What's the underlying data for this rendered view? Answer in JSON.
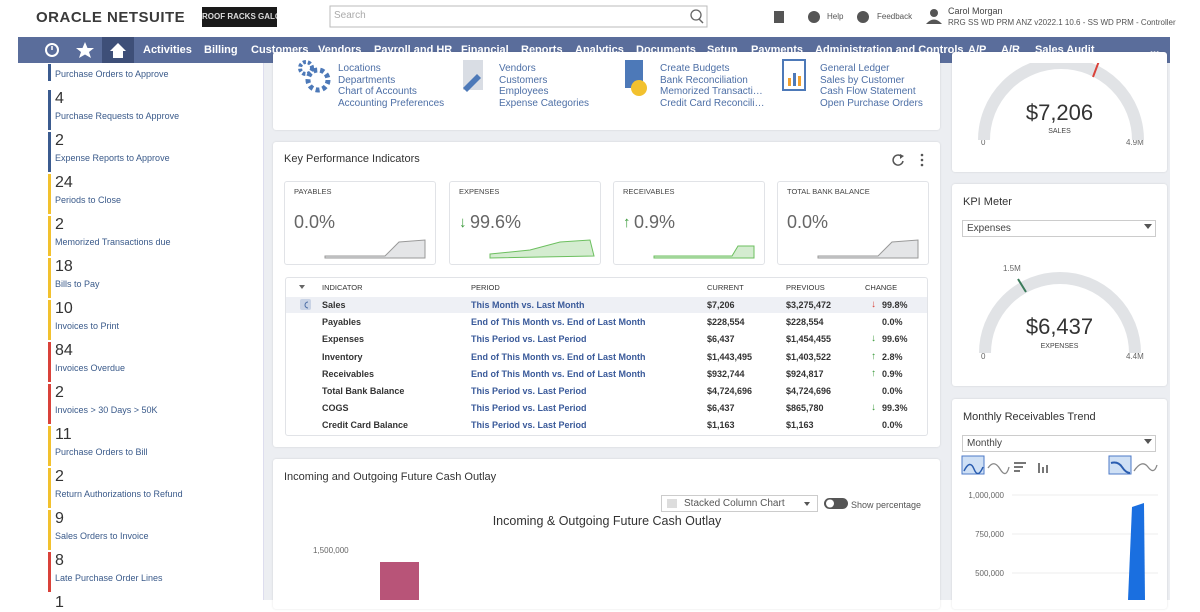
{
  "header": {
    "brand": "ORACLE NETSUITE",
    "company_logo": "ROOF RACKS GALORE",
    "search_placeholder": "Search",
    "help": "Help",
    "feedback": "Feedback",
    "user_name": "Carol Morgan",
    "user_role": "RRG SS WD PRM ANZ v2022.1 10.6 - SS WD PRM - Controller"
  },
  "nav": [
    "Activities",
    "Billing",
    "Customers",
    "Vendors",
    "Payroll and HR",
    "Financial",
    "Reports",
    "Analytics",
    "Documents",
    "Setup",
    "Payments",
    "Administration and Controls",
    "A/P",
    "A/R",
    "Sales Audit",
    "..."
  ],
  "reminders": [
    {
      "label": "Purchase Orders to Approve",
      "color": "#3b5b8f"
    },
    {
      "count": "4",
      "label": "Purchase Requests to Approve",
      "color": "#3b5b8f"
    },
    {
      "count": "2",
      "label": "Expense Reports to Approve",
      "color": "#3b5b8f"
    },
    {
      "count": "24",
      "label": "Periods to Close",
      "color": "#f2c12e"
    },
    {
      "count": "2",
      "label": "Memorized Transactions due",
      "color": "#f2c12e"
    },
    {
      "count": "18",
      "label": "Bills to Pay",
      "color": "#f2c12e"
    },
    {
      "count": "10",
      "label": "Invoices to Print",
      "color": "#f2c12e"
    },
    {
      "count": "84",
      "label": "Invoices Overdue",
      "color": "#d9423a"
    },
    {
      "count": "2",
      "label": "Invoices > 30 Days > 50K",
      "color": "#d9423a"
    },
    {
      "count": "11",
      "label": "Purchase Orders to Bill",
      "color": "#f2c12e"
    },
    {
      "count": "2",
      "label": "Return Authorizations to Refund",
      "color": "#f2c12e"
    },
    {
      "count": "9",
      "label": "Sales Orders to Invoice",
      "color": "#f2c12e"
    },
    {
      "count": "8",
      "label": "Late Purchase Order Lines",
      "color": "#d9423a"
    },
    {
      "count": "1"
    }
  ],
  "shortcuts": [
    [
      "Locations",
      "Departments",
      "Chart of Accounts",
      "Accounting Preferences"
    ],
    [
      "Vendors",
      "Customers",
      "Employees",
      "Expense Categories"
    ],
    [
      "Create Budgets",
      "Bank Reconciliation",
      "Memorized Transacti…",
      "Credit Card Reconcili…"
    ],
    [
      "General Ledger",
      "Sales by Customer",
      "Cash Flow Statement",
      "Open Purchase Orders"
    ]
  ],
  "kpi": {
    "title": "Key Performance Indicators",
    "cards": [
      {
        "label": "PAYABLES",
        "value": "0.0%"
      },
      {
        "label": "EXPENSES",
        "arrow": "↓",
        "value": "99.6%"
      },
      {
        "label": "RECEIVABLES",
        "arrow": "↑",
        "value": "0.9%"
      },
      {
        "label": "TOTAL BANK BALANCE",
        "value": "0.0%"
      }
    ],
    "columns": [
      "INDICATOR",
      "PERIOD",
      "CURRENT",
      "PREVIOUS",
      "CHANGE"
    ],
    "rows": [
      {
        "indicator": "Sales",
        "period": "This Month vs. Last Month",
        "current": "$7,206",
        "previous": "$3,275,472",
        "arrow": "↓",
        "arrow_color": "#d9423a",
        "change": "99.8%"
      },
      {
        "indicator": "Payables",
        "period": "End of This Month vs. End of Last Month",
        "current": "$228,554",
        "previous": "$228,554",
        "change": "0.0%"
      },
      {
        "indicator": "Expenses",
        "period": "This Period vs. Last Period",
        "current": "$6,437",
        "previous": "$1,454,455",
        "arrow": "↓",
        "arrow_color": "#3a9a3a",
        "change": "99.6%"
      },
      {
        "indicator": "Inventory",
        "period": "End of This Month vs. End of Last Month",
        "current": "$1,443,495",
        "previous": "$1,403,522",
        "arrow": "↑",
        "arrow_color": "#3a9a3a",
        "change": "2.8%"
      },
      {
        "indicator": "Receivables",
        "period": "End of This Month vs. End of Last Month",
        "current": "$932,744",
        "previous": "$924,817",
        "arrow": "↑",
        "arrow_color": "#3a9a3a",
        "change": "0.9%"
      },
      {
        "indicator": "Total Bank Balance",
        "period": "This Period vs. Last Period",
        "current": "$4,724,696",
        "previous": "$4,724,696",
        "change": "0.0%"
      },
      {
        "indicator": "COGS",
        "period": "This Period vs. Last Period",
        "current": "$6,437",
        "previous": "$865,780",
        "arrow": "↓",
        "arrow_color": "#3a9a3a",
        "change": "99.3%"
      },
      {
        "indicator": "Credit Card Balance",
        "period": "This Period vs. Last Period",
        "current": "$1,163",
        "previous": "$1,163",
        "change": "0.0%"
      }
    ]
  },
  "cash_outlay": {
    "title": "Incoming and Outgoing Future Cash Outlay",
    "chart_type_select": "Stacked Column Chart",
    "toggle_label": "Show percentage",
    "chart_title": "Incoming & Outgoing Future Cash Outlay",
    "y_label": "1,500,000"
  },
  "sales_gauge": {
    "value": "$7,206",
    "label": "SALES",
    "min": "0",
    "max": "4.9M"
  },
  "kpi_meter": {
    "title": "KPI Meter",
    "select": "Expenses",
    "target": "1.5M",
    "value": "$6,437",
    "label": "EXPENSES",
    "min": "0",
    "max": "4.4M"
  },
  "receivables_trend": {
    "title": "Monthly Receivables Trend",
    "select": "Monthly",
    "y_labels": [
      "1,000,000",
      "750,000",
      "500,000"
    ]
  }
}
